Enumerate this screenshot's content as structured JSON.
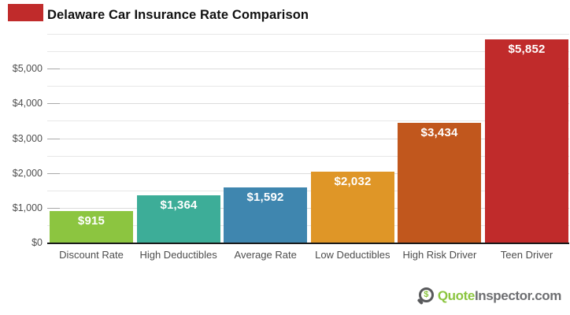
{
  "title": "Delaware Car Insurance Rate Comparison",
  "accent_color": "#c02b2b",
  "chart_data": {
    "type": "bar",
    "title": "Delaware Car Insurance Rate Comparison",
    "categories": [
      "Discount Rate",
      "High Deductibles",
      "Average Rate",
      "Low Deductibles",
      "High Risk Driver",
      "Teen Driver"
    ],
    "values": [
      915,
      1364,
      1592,
      2032,
      3434,
      5852
    ],
    "value_labels": [
      "$915",
      "$1,364",
      "$1,592",
      "$2,032",
      "$3,434",
      "$5,852"
    ],
    "bar_colors": [
      "#8cc540",
      "#3dad98",
      "#3f86af",
      "#df9627",
      "#c1571d",
      "#c02b2b"
    ],
    "xlabel": "",
    "ylabel": "",
    "ylim": [
      0,
      6000
    ],
    "gridline_step": 500,
    "grid": true,
    "legend": "none",
    "y_ticks": [
      {
        "value": 0,
        "label": "$0"
      },
      {
        "value": 1000,
        "label": "$1,000"
      },
      {
        "value": 2000,
        "label": "$2,000"
      },
      {
        "value": 3000,
        "label": "$3,000"
      },
      {
        "value": 4000,
        "label": "$4,000"
      },
      {
        "value": 5000,
        "label": "$5,000"
      }
    ]
  },
  "footer": {
    "icon": "magnifier-dollar-icon",
    "icon_symbol": "$",
    "brand_green": "Quote",
    "brand_gray": "Inspector.com"
  }
}
